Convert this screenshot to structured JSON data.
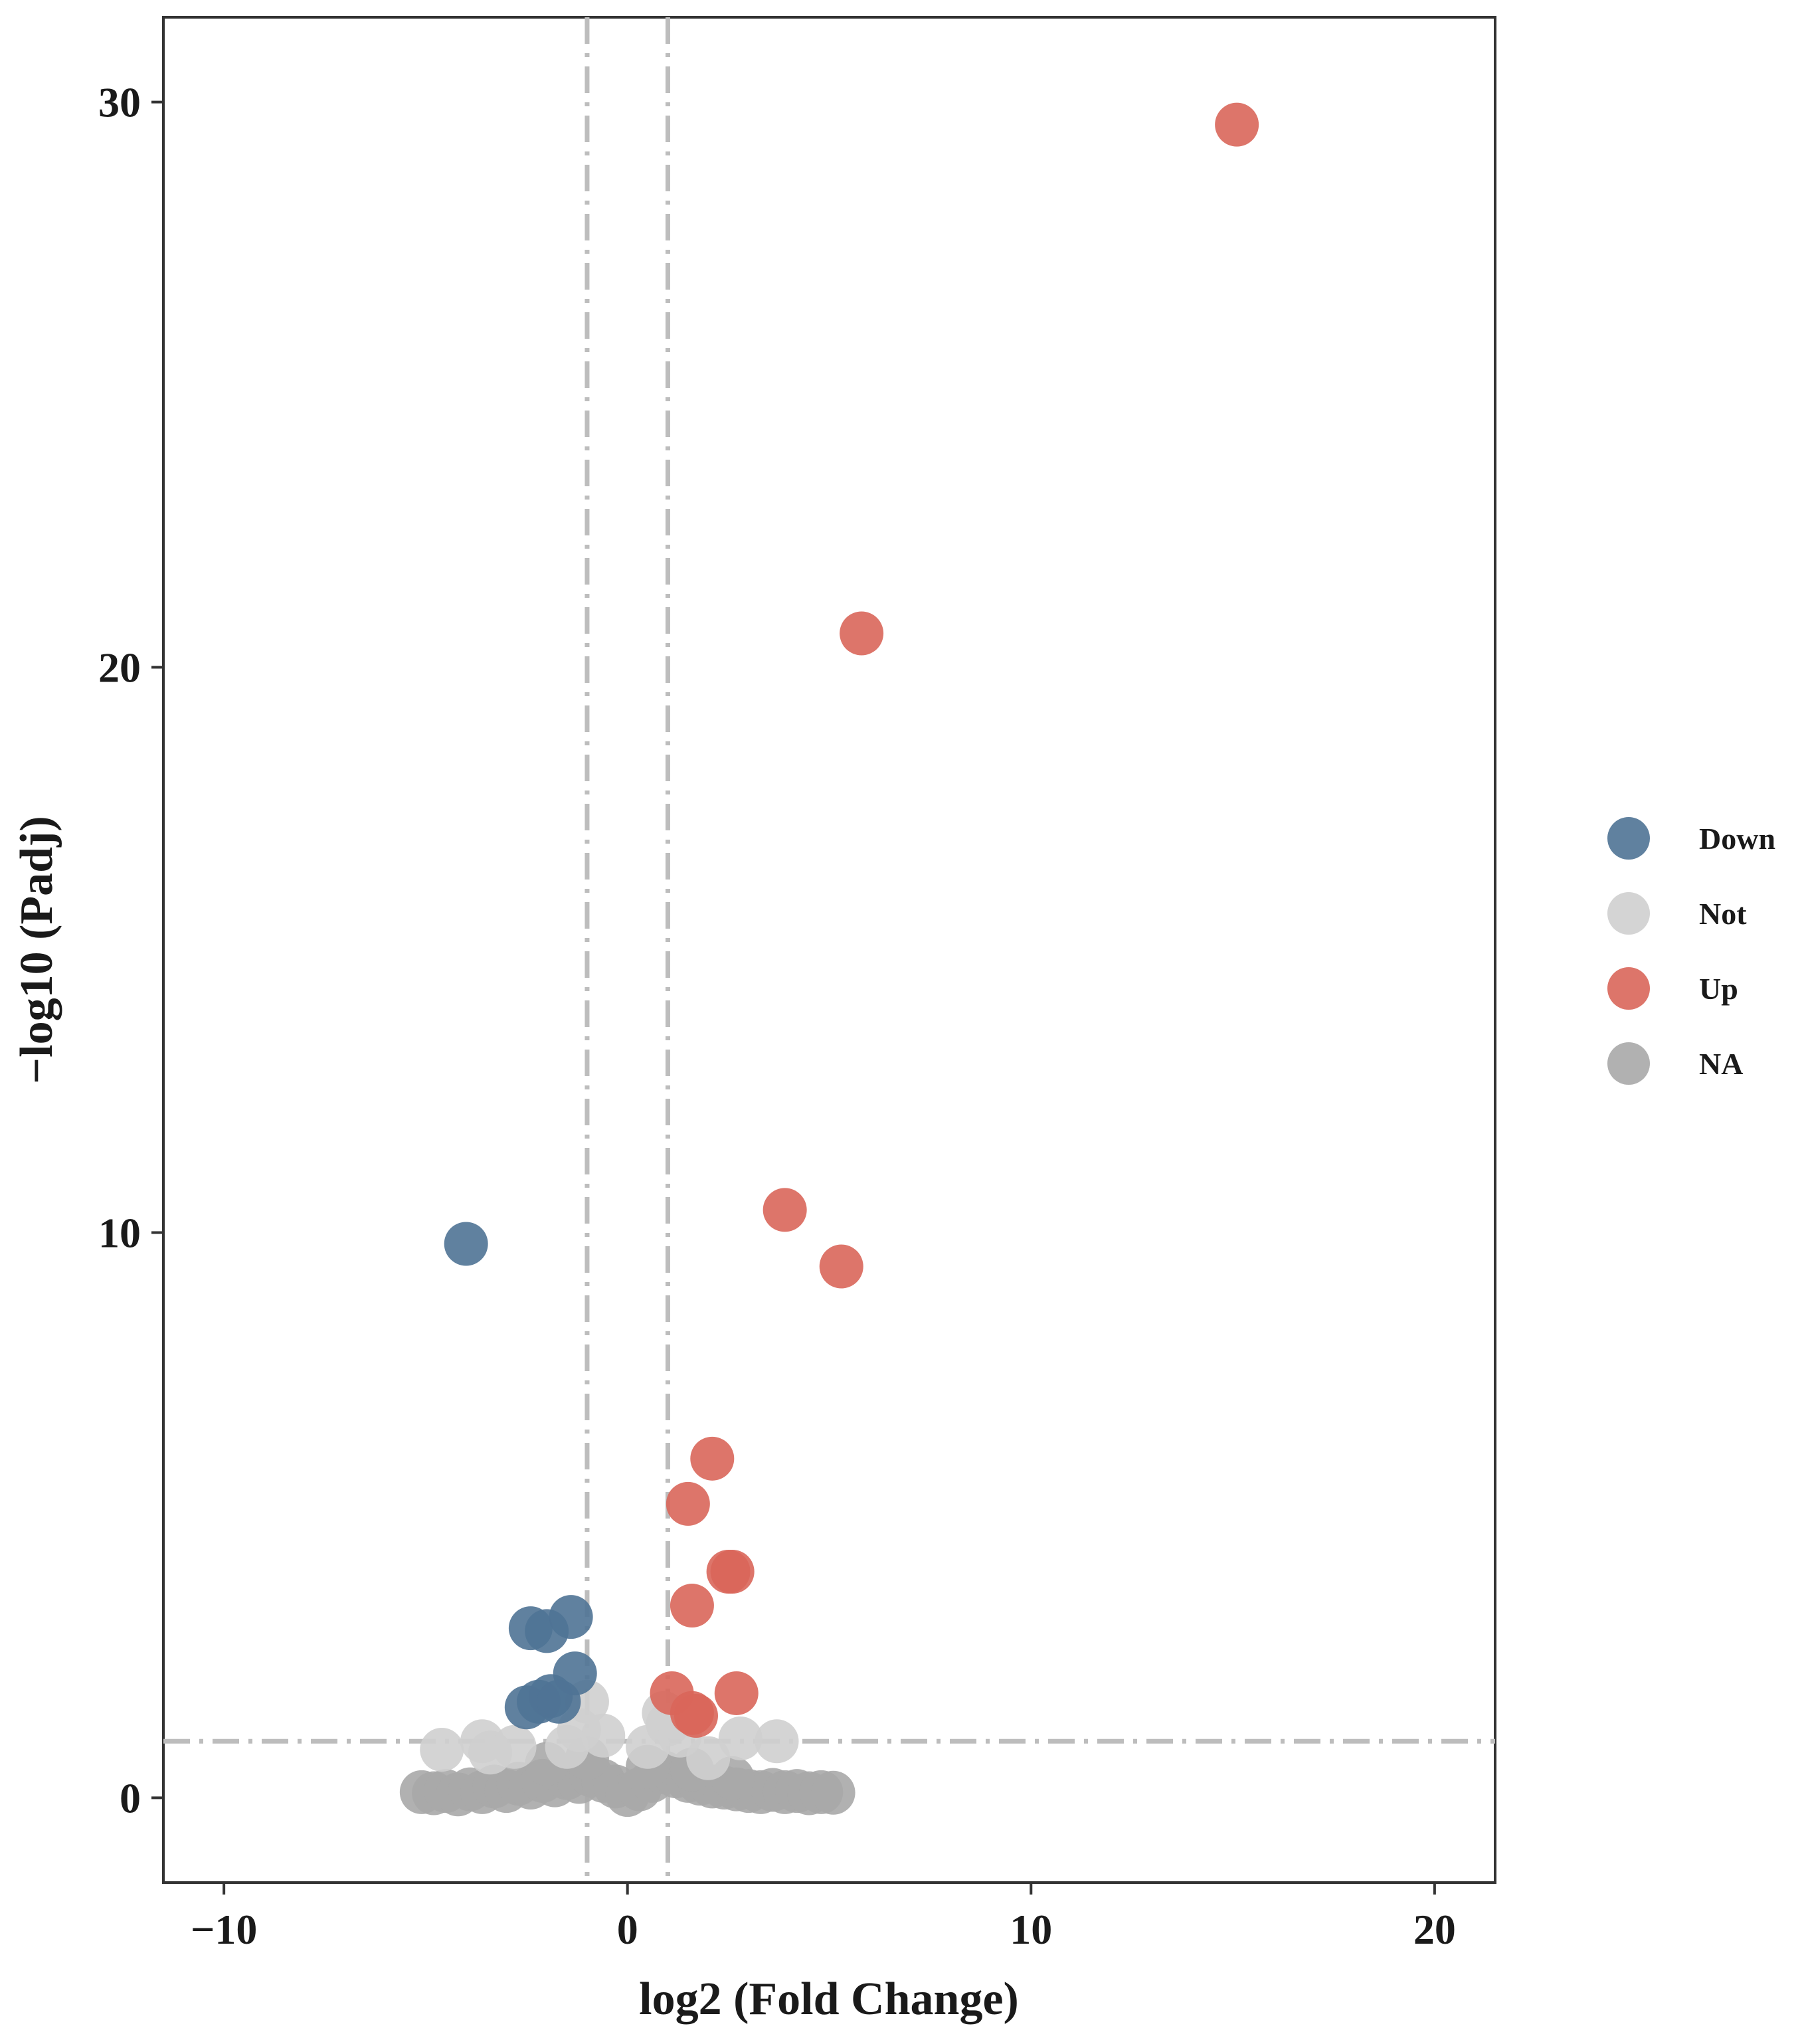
{
  "chart_data": {
    "type": "scatter",
    "title": "",
    "xlabel": "log2 (Fold Change)",
    "ylabel": "−log10 (Padj)",
    "xlim": [
      -11.5,
      21.5
    ],
    "ylim": [
      -1.5,
      31.5
    ],
    "xticks": [
      -10,
      0,
      10,
      20
    ],
    "xtick_labels": [
      "−10",
      "0",
      "10",
      "20"
    ],
    "yticks": [
      0,
      10,
      20,
      30
    ],
    "ytick_labels": [
      "0",
      "10",
      "20",
      "30"
    ],
    "grid": false,
    "legend_position": "right",
    "thresholds": {
      "log2fc": [
        -1,
        1
      ],
      "neg_log10_padj": 1.0
    },
    "colors": {
      "Down": "#4f7395",
      "Not": "#cfcfcf",
      "Up": "#d9665a",
      "NA": "#a9a9a9",
      "threshold_line": "#bdbdbd",
      "frame": "#333333"
    },
    "legend": [
      "Down",
      "Not",
      "Up",
      "NA"
    ],
    "series": [
      {
        "name": "Down",
        "x": [
          -4.0,
          -2.4,
          -2.0,
          -1.4,
          -1.3,
          -2.5,
          -2.2,
          -1.9,
          -1.7
        ],
        "y": [
          9.8,
          3.0,
          2.95,
          3.2,
          2.2,
          1.6,
          1.7,
          1.8,
          1.7
        ]
      },
      {
        "name": "Up",
        "x": [
          15.1,
          5.8,
          3.9,
          5.3,
          2.1,
          1.5,
          2.5,
          2.6,
          1.6,
          1.1,
          2.7,
          1.6,
          1.7
        ],
        "y": [
          29.6,
          20.6,
          10.4,
          9.4,
          6.0,
          5.2,
          4.0,
          4.0,
          3.4,
          1.85,
          1.85,
          1.5,
          1.45
        ]
      },
      {
        "name": "Not",
        "x": [
          -4.6,
          -3.6,
          -3.4,
          -1.0,
          -1.2,
          0.9,
          1.0,
          2.8,
          3.7,
          -2.8,
          -0.6,
          0.5,
          1.3,
          -1.5,
          2.0
        ],
        "y": [
          0.85,
          1.0,
          0.8,
          1.7,
          1.2,
          1.5,
          1.3,
          1.05,
          1.0,
          0.9,
          1.1,
          0.9,
          1.1,
          0.9,
          0.7
        ]
      },
      {
        "name": "NA",
        "x": [
          -5.1,
          -4.8,
          -4.5,
          -4.2,
          -3.9,
          -3.6,
          -3.3,
          -3.0,
          -2.7,
          -2.4,
          -2.1,
          -1.8,
          -1.5,
          -1.2,
          -0.9,
          -0.6,
          -0.3,
          0.0,
          0.3,
          0.6,
          0.9,
          1.2,
          1.5,
          1.8,
          2.1,
          2.4,
          2.7,
          3.0,
          3.3,
          3.6,
          3.9,
          4.2,
          4.5,
          4.8,
          5.1,
          -2.0,
          -1.0,
          0.5,
          1.6,
          2.6
        ],
        "y": [
          0.1,
          0.08,
          0.12,
          0.06,
          0.15,
          0.1,
          0.2,
          0.12,
          0.25,
          0.18,
          0.3,
          0.22,
          0.35,
          0.28,
          0.4,
          0.3,
          0.2,
          0.05,
          0.15,
          0.3,
          0.45,
          0.38,
          0.3,
          0.25,
          0.2,
          0.18,
          0.15,
          0.12,
          0.1,
          0.14,
          0.1,
          0.12,
          0.08,
          0.1,
          0.09,
          0.6,
          0.7,
          0.55,
          0.5,
          0.35
        ]
      }
    ]
  }
}
